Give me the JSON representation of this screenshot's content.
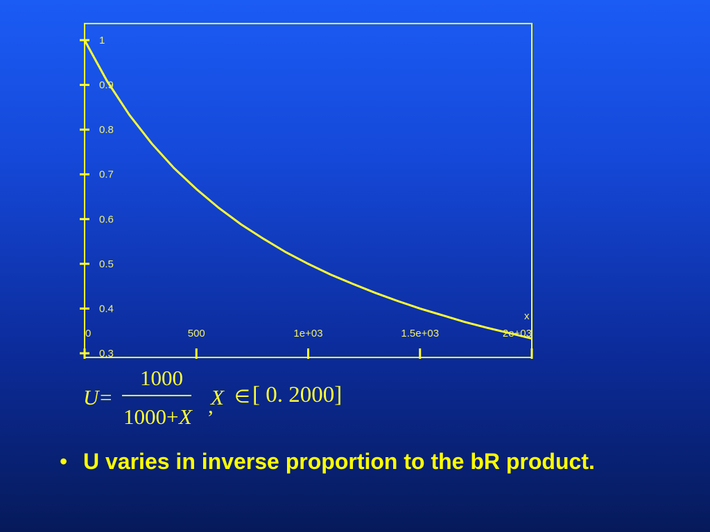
{
  "slide": {
    "bullet_marker": "•",
    "bullet_text": "U varies in inverse proportion to the bR product."
  },
  "formula": {
    "lhs": "U",
    "equals": "=",
    "numerator": "1000",
    "denominator_constant": "1000+",
    "denominator_var": "X",
    "comma": ",",
    "domain_var": "X",
    "member_symbol": "∈",
    "interval": "[ 0. 2000]"
  },
  "colors": {
    "curve": "#ffff33",
    "axes": "#ffff33",
    "text": "#ffff00",
    "tick_labels": "#f2f26a"
  },
  "chart_data": {
    "type": "line",
    "title": "",
    "xlabel": "x",
    "ylabel": "",
    "xlim": [
      0,
      2000
    ],
    "ylim": [
      0.3,
      1.0
    ],
    "grid": false,
    "x_ticks": [
      0,
      500,
      1000,
      1500,
      2000
    ],
    "x_tick_labels": [
      "0",
      "500",
      "1e+03",
      "1.5e+03",
      "2e+03"
    ],
    "y_ticks": [
      1.0,
      0.9,
      0.8,
      0.7,
      0.6,
      0.5,
      0.4,
      0.3
    ],
    "y_tick_labels": [
      "1",
      "0.9",
      "0.8",
      "0.7",
      "0.6",
      "0.5",
      "0.4",
      "0.3"
    ],
    "series": [
      {
        "x": [
          0,
          100,
          200,
          300,
          400,
          500,
          600,
          700,
          800,
          900,
          1000,
          1100,
          1200,
          1300,
          1400,
          1500,
          1600,
          1700,
          1800,
          1900,
          2000
        ],
        "values": [
          1.0,
          0.909,
          0.833,
          0.769,
          0.714,
          0.667,
          0.625,
          0.588,
          0.556,
          0.526,
          0.5,
          0.476,
          0.455,
          0.435,
          0.417,
          0.4,
          0.385,
          0.37,
          0.357,
          0.345,
          0.333
        ]
      }
    ]
  }
}
